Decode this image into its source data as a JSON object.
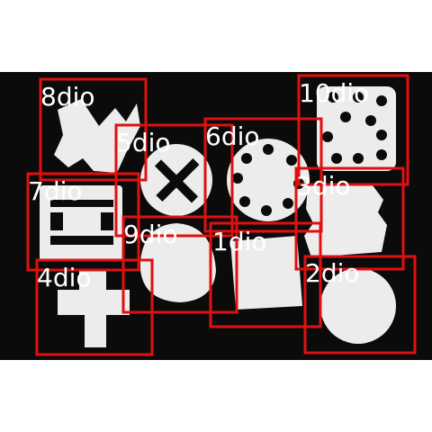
{
  "image": {
    "description_colors": {
      "backdrop": "#ffffff",
      "surface": "#0b0b0b",
      "parts": "#ececec",
      "box": "#e01010",
      "label": "#ffffff"
    }
  },
  "detections": [
    {
      "label": "8dio"
    },
    {
      "label": "10dio"
    },
    {
      "label": "5dio"
    },
    {
      "label": "6dio"
    },
    {
      "label": "7dio"
    },
    {
      "label": "3dio"
    },
    {
      "label": "9dio"
    },
    {
      "label": "1dio"
    },
    {
      "label": "4dio"
    },
    {
      "label": "2dio"
    }
  ]
}
